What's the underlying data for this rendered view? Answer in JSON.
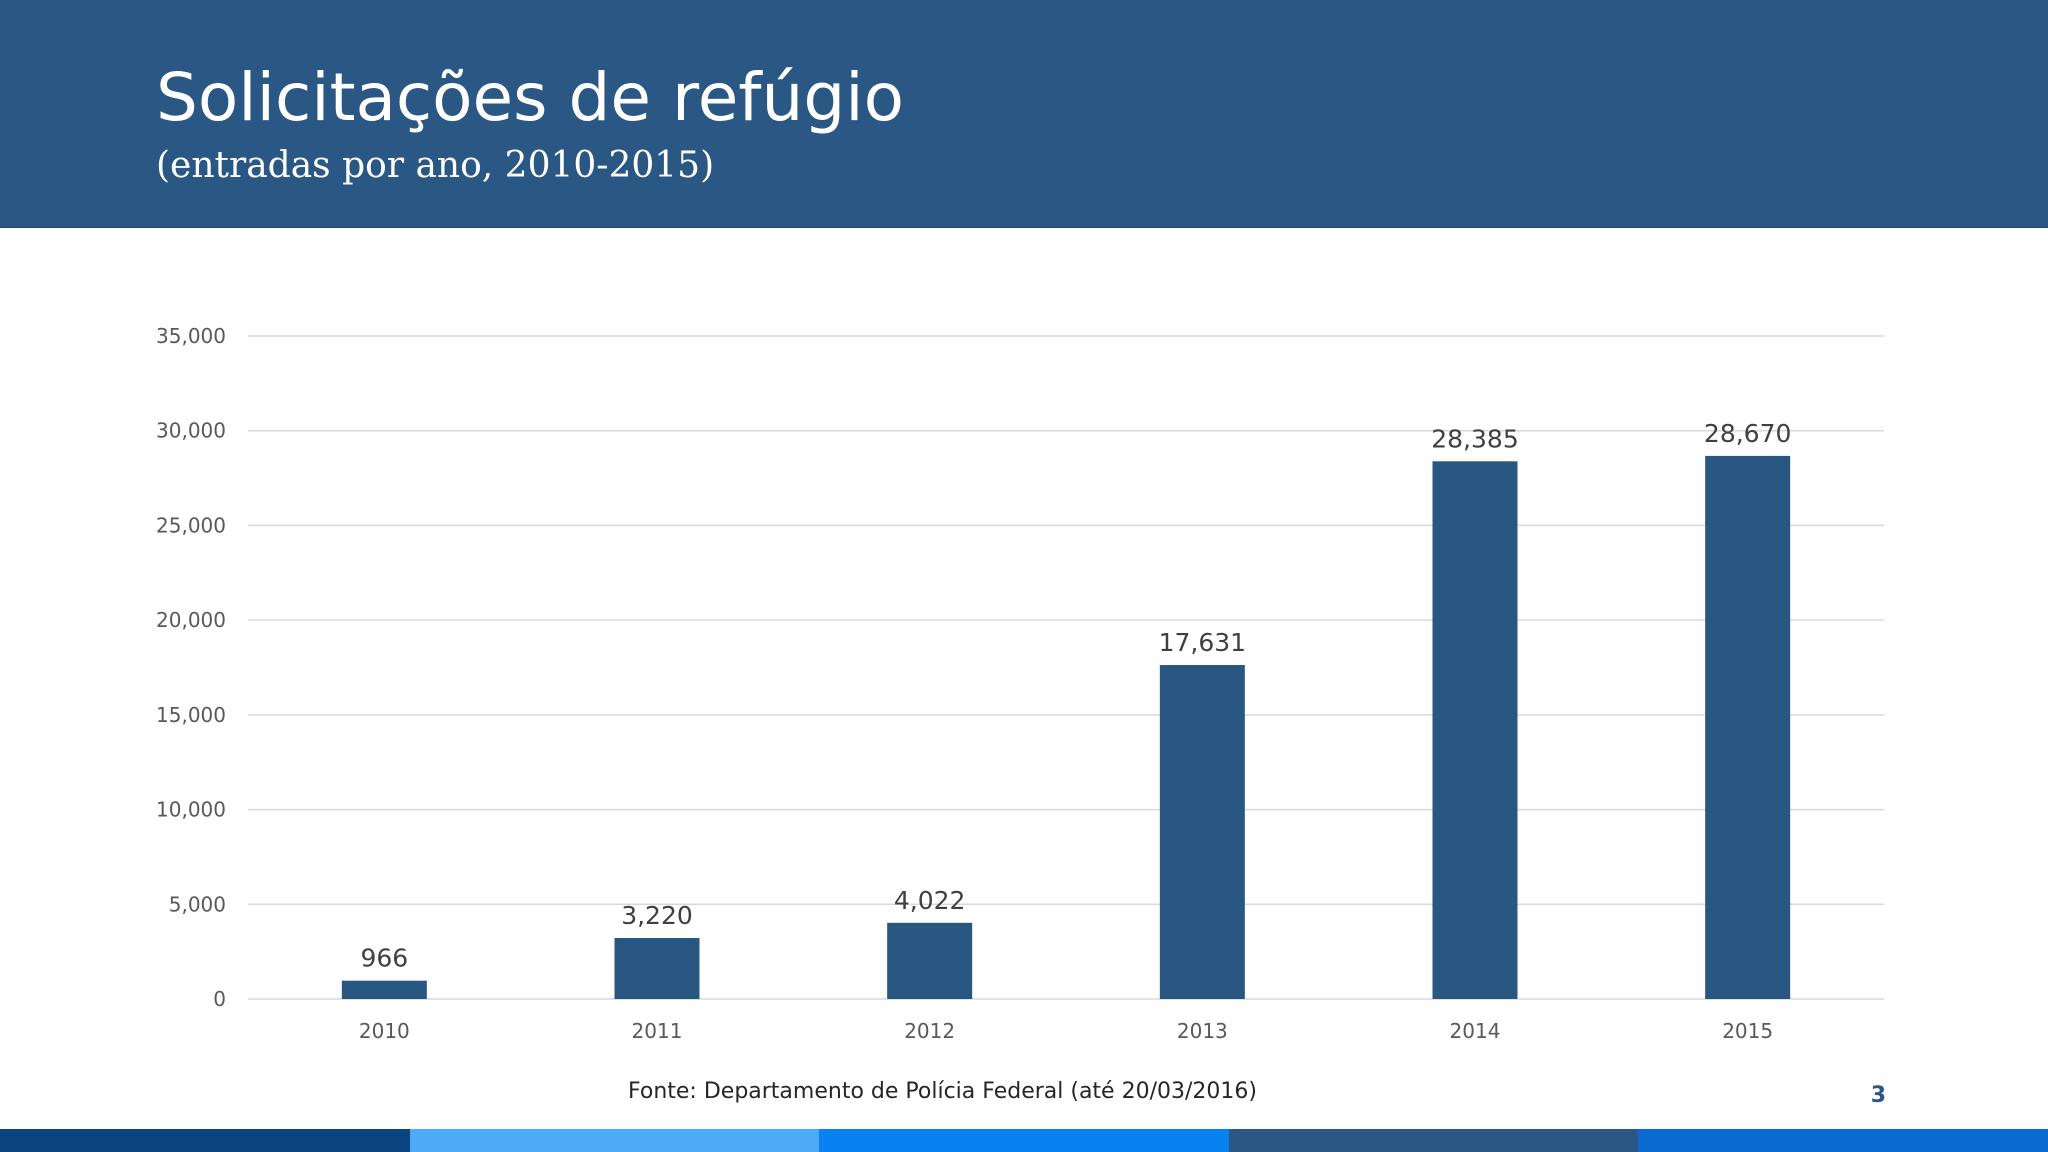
{
  "slide": {
    "title": "Solicitações de refúgio",
    "subtitle": "(entradas por ano, 2010-2015)",
    "source": "Fonte: Departamento de Polícia Federal (até 20/03/2016)",
    "page_number": "3"
  },
  "colors": {
    "header_bg": "#2a5783",
    "bar": "#285781",
    "gridline": "#d9d9d9",
    "footer": [
      "#0a4580",
      "#4daaf7",
      "#0782f0",
      "#2a5783",
      "#0a6ad1"
    ]
  },
  "chart_data": {
    "type": "bar",
    "categories": [
      "2010",
      "2011",
      "2012",
      "2013",
      "2014",
      "2015"
    ],
    "values": [
      966,
      3220,
      4022,
      17631,
      28385,
      28670
    ],
    "value_labels": [
      "966",
      "3,220",
      "4,022",
      "17,631",
      "28,385",
      "28,670"
    ],
    "yticks": [
      0,
      5000,
      10000,
      15000,
      20000,
      25000,
      30000,
      35000
    ],
    "ytick_labels": [
      "0",
      "5,000",
      "10,000",
      "15,000",
      "20,000",
      "25,000",
      "30,000",
      "35,000"
    ],
    "ylim": [
      0,
      35000
    ],
    "title": "",
    "xlabel": "",
    "ylabel": "",
    "grid": true,
    "legend": "none"
  }
}
